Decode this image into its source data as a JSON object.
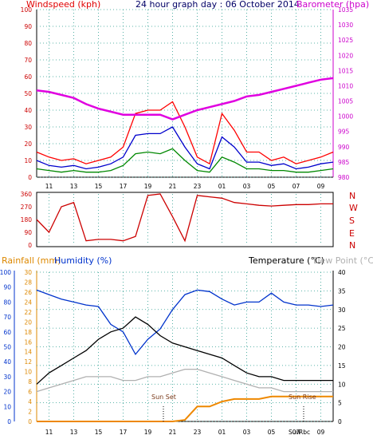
{
  "header": {
    "left_title": "Windspeed (kph)",
    "center_title": "24 hour graph day : 06 October 2014",
    "right_title": "Barometer (hpa)"
  },
  "wind_dir_panel": {
    "compass_letters": [
      "N",
      "W",
      "S",
      "E",
      "N"
    ]
  },
  "lower_panel": {
    "rainfall_label": "Rainfall (mm)",
    "humidity_label": "Humidity (%)",
    "temperature_label": "Temperature (°C)",
    "dewpoint_label": "Dew Point (°C)",
    "sun_set_label": "Sun Set",
    "sun_rise_label": "Sun Rise",
    "sun_fragment_left": "Sun",
    "sun_fragment_right": "Rbc"
  },
  "colors": {
    "windspeed": "#ff0000",
    "gust_avg": "#0000cc",
    "avg_speed": "#008800",
    "barometer": "#e000e0",
    "wind_direction": "#cc0000",
    "humidity": "#0033cc",
    "temperature": "#000000",
    "dewpoint": "#b0b0b0",
    "rainfall": "#ee8800",
    "grid": "#2a9d8f"
  },
  "chart_data": [
    {
      "type": "line",
      "title": "24 hour graph day : 06 October 2014",
      "x_tick_labels": [
        "11",
        "13",
        "15",
        "17",
        "19",
        "21",
        "23",
        "01",
        "03",
        "05",
        "07",
        "09"
      ],
      "left_axis": {
        "label": "Windspeed (kph)",
        "ylim": [
          0,
          100
        ],
        "ticks": [
          0,
          10,
          20,
          30,
          40,
          50,
          60,
          70,
          80,
          90,
          100
        ]
      },
      "right_axis": {
        "label": "Barometer (hpa)",
        "ylim": [
          980,
          1035
        ],
        "ticks": [
          980,
          985,
          990,
          995,
          1000,
          1005,
          1010,
          1015,
          1020,
          1025,
          1030,
          1035
        ]
      },
      "x_hours": [
        10,
        11,
        12,
        13,
        14,
        15,
        16,
        17,
        18,
        19,
        20,
        21,
        22,
        23,
        24,
        25,
        26,
        27,
        28,
        29,
        30,
        31,
        32,
        33,
        34
      ],
      "series": [
        {
          "axis": "left",
          "values": [
            15,
            12,
            10,
            11,
            8,
            10,
            12,
            18,
            38,
            40,
            40,
            45,
            30,
            12,
            8,
            38,
            28,
            15,
            15,
            10,
            12,
            8,
            10,
            12,
            15
          ]
        },
        {
          "axis": "left",
          "values": [
            10,
            7,
            6,
            7,
            5,
            6,
            8,
            12,
            25,
            26,
            26,
            30,
            18,
            8,
            5,
            24,
            18,
            9,
            9,
            7,
            8,
            5,
            6,
            8,
            9
          ]
        },
        {
          "axis": "left",
          "values": [
            5,
            4,
            3,
            4,
            3,
            3,
            4,
            7,
            14,
            15,
            14,
            17,
            10,
            4,
            3,
            12,
            9,
            5,
            5,
            4,
            4,
            3,
            3,
            4,
            5
          ]
        },
        {
          "axis": "right",
          "values": [
            1008.5,
            1008,
            1007,
            1006,
            1004,
            1002.5,
            1001.5,
            1000.5,
            1000.5,
            1000.5,
            1000.5,
            999,
            1000.5,
            1002,
            1003,
            1004,
            1005,
            1006.5,
            1007,
            1008,
            1009,
            1010,
            1011,
            1012,
            1012.5
          ]
        }
      ]
    },
    {
      "type": "line",
      "ylim": [
        0,
        360
      ],
      "left_ticks": [
        0,
        90,
        180,
        270,
        360
      ],
      "x_hours": [
        10,
        11,
        12,
        13,
        14,
        15,
        16,
        17,
        18,
        19,
        20,
        21,
        22,
        23,
        24,
        25,
        26,
        27,
        28,
        29,
        30,
        31,
        32,
        33,
        34
      ],
      "values": [
        180,
        90,
        270,
        300,
        30,
        40,
        40,
        30,
        60,
        350,
        360,
        200,
        30,
        350,
        340,
        330,
        300,
        290,
        280,
        275,
        280,
        285,
        285,
        290,
        290
      ]
    },
    {
      "type": "line",
      "x_tick_labels": [
        "11",
        "13",
        "15",
        "17",
        "19",
        "21",
        "23",
        "01",
        "03",
        "05",
        "07",
        "09"
      ],
      "outer_left_axis": {
        "label": "Humidity (%)",
        "ylim": [
          0,
          100
        ],
        "ticks": [
          0,
          10,
          20,
          30,
          40,
          50,
          60,
          70,
          80,
          90,
          100
        ]
      },
      "inner_left_axis": {
        "label": "Rainfall (mm)",
        "ylim": [
          0,
          30
        ],
        "ticks": [
          0,
          2,
          4,
          6,
          8,
          10,
          12,
          14,
          16,
          18,
          20,
          22,
          24,
          26,
          28,
          30
        ]
      },
      "right_axis": {
        "label": "Temperature (°C)",
        "ylim": [
          0,
          40
        ],
        "ticks": [
          0,
          5,
          10,
          15,
          20,
          25,
          30,
          35,
          40
        ]
      },
      "x_hours": [
        10,
        11,
        12,
        13,
        14,
        15,
        16,
        17,
        18,
        19,
        20,
        21,
        22,
        23,
        24,
        25,
        26,
        27,
        28,
        29,
        30,
        31,
        32,
        33,
        34
      ],
      "series": [
        {
          "axis": "outer_left",
          "values": [
            88,
            85,
            82,
            80,
            78,
            77,
            65,
            60,
            45,
            55,
            62,
            75,
            85,
            88,
            87,
            82,
            78,
            80,
            80,
            86,
            80,
            78,
            78,
            77,
            78
          ]
        },
        {
          "axis": "right",
          "values": [
            10,
            13,
            15,
            17,
            19,
            22,
            24,
            25,
            28,
            26,
            23,
            21,
            20,
            19,
            18,
            17,
            15,
            13,
            12,
            12,
            11,
            11,
            11,
            11,
            11
          ]
        },
        {
          "axis": "right",
          "values": [
            8,
            9,
            10,
            11,
            12,
            12,
            12,
            11,
            11,
            12,
            12,
            13,
            14,
            14,
            13,
            12,
            11,
            10,
            9,
            9,
            8,
            8,
            8,
            8,
            8
          ]
        },
        {
          "axis": "inner_left",
          "values": [
            0,
            0,
            0,
            0,
            0,
            0,
            0,
            0,
            0,
            0,
            0,
            0,
            0.3,
            3,
            3,
            4,
            4.5,
            4.5,
            4.5,
            5,
            5,
            5,
            5,
            5,
            5
          ]
        }
      ]
    }
  ]
}
